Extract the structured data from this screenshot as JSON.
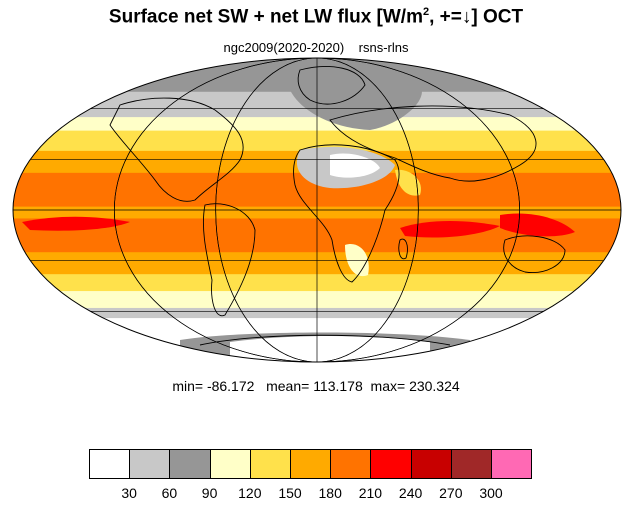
{
  "title": {
    "main": "Surface net SW + net LW flux [W/m",
    "sup": "2",
    "tail": ", +=↓]  OCT"
  },
  "subtitle": "ngc2009(2020-2020)    rsns-rlns",
  "stats": {
    "min_label": "min=",
    "min": "-86.172",
    "mean_label": "mean=",
    "mean": "113.178",
    "max_label": "max=",
    "max": "230.324"
  },
  "map": {
    "projection": "mollweide",
    "graticule": true,
    "coastlines": true
  },
  "colorbar": {
    "levels": [
      "30",
      "60",
      "90",
      "120",
      "150",
      "180",
      "210",
      "240",
      "270",
      "300"
    ],
    "colors": [
      "#ffffff",
      "#c8c8c8",
      "#969696",
      "#ffffc8",
      "#ffe14b",
      "#ffaa00",
      "#ff7300",
      "#ff0000",
      "#c80000",
      "#a02828",
      "#ff69b4"
    ]
  },
  "flux_bands": [
    {
      "lat_top": 90,
      "lat_bottom": 70,
      "color": "#969696"
    },
    {
      "lat_top": 70,
      "lat_bottom": 55,
      "color": "#c8c8c8"
    },
    {
      "lat_top": 55,
      "lat_bottom": 47,
      "color": "#ffffc8"
    },
    {
      "lat_top": 47,
      "lat_bottom": 35,
      "color": "#ffe14b"
    },
    {
      "lat_top": 35,
      "lat_bottom": 22,
      "color": "#ffaa00"
    },
    {
      "lat_top": 22,
      "lat_bottom": 2,
      "color": "#ff7300"
    },
    {
      "lat_top": 2,
      "lat_bottom": -5,
      "color": "#ffaa00"
    },
    {
      "lat_top": -5,
      "lat_bottom": -25,
      "color": "#ff7300"
    },
    {
      "lat_top": -25,
      "lat_bottom": -38,
      "color": "#ffaa00"
    },
    {
      "lat_top": -38,
      "lat_bottom": -48,
      "color": "#ffe14b"
    },
    {
      "lat_top": -48,
      "lat_bottom": -58,
      "color": "#ffffc8"
    },
    {
      "lat_top": -58,
      "lat_bottom": -64,
      "color": "#c8c8c8"
    },
    {
      "lat_top": -64,
      "lat_bottom": -90,
      "color": "#ffffff"
    }
  ]
}
